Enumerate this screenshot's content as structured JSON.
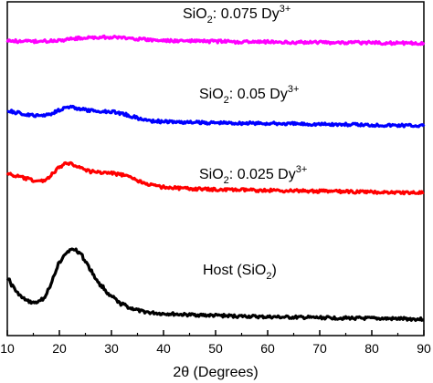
{
  "chart_data": {
    "type": "line",
    "title": "",
    "xlabel": "2θ (Degrees)",
    "ylabel": "",
    "xlim": [
      10,
      90
    ],
    "x_ticks": [
      10,
      20,
      30,
      40,
      50,
      60,
      70,
      80,
      90
    ],
    "grid": false,
    "legend": "none",
    "y_unit": "relative intensity (arbitrary, offset traces)",
    "series": [
      {
        "label_parts": {
          "pre": "Host (SiO",
          "sub": "2",
          "mid": ")",
          "sup": ""
        },
        "color": "#000000",
        "x": [
          10,
          11,
          12,
          13,
          14,
          15,
          16,
          17,
          18,
          19,
          20,
          21,
          22,
          23,
          24,
          25,
          26,
          27,
          28,
          30,
          32,
          34,
          36,
          38,
          40,
          45,
          50,
          55,
          60,
          65,
          70,
          75,
          80,
          85,
          90
        ],
        "y": [
          0.6,
          0.48,
          0.38,
          0.31,
          0.27,
          0.25,
          0.26,
          0.31,
          0.44,
          0.62,
          0.8,
          0.92,
          0.97,
          0.98,
          0.93,
          0.82,
          0.7,
          0.58,
          0.48,
          0.33,
          0.23,
          0.17,
          0.13,
          0.11,
          0.1,
          0.085,
          0.075,
          0.065,
          0.055,
          0.05,
          0.045,
          0.04,
          0.035,
          0.03,
          0.025
        ]
      },
      {
        "label_parts": {
          "pre": "SiO",
          "sub": "2",
          "mid": ": 0.025 Dy",
          "sup": "3+"
        },
        "color": "#ff0000",
        "x": [
          10,
          12,
          14,
          15,
          16,
          17,
          18,
          19,
          20,
          21,
          22,
          23,
          24,
          25,
          26,
          28,
          30,
          32,
          34,
          36,
          38,
          40,
          45,
          50,
          55,
          60,
          65,
          70,
          75,
          80,
          85,
          90
        ],
        "y": [
          0.78,
          0.75,
          0.72,
          0.7,
          0.69,
          0.7,
          0.74,
          0.8,
          0.86,
          0.9,
          0.91,
          0.89,
          0.86,
          0.83,
          0.81,
          0.8,
          0.79,
          0.77,
          0.73,
          0.68,
          0.64,
          0.62,
          0.6,
          0.59,
          0.585,
          0.58,
          0.575,
          0.57,
          0.565,
          0.56,
          0.555,
          0.55
        ]
      },
      {
        "label_parts": {
          "pre": "SiO",
          "sub": "2",
          "mid": ": 0.05 Dy",
          "sup": "3+"
        },
        "color": "#0000ff",
        "x": [
          10,
          12,
          14,
          16,
          18,
          20,
          21,
          22,
          23,
          24,
          26,
          28,
          30,
          32,
          34,
          36,
          38,
          40,
          45,
          50,
          55,
          60,
          65,
          70,
          75,
          80,
          85,
          90
        ],
        "y": [
          0.52,
          0.49,
          0.46,
          0.45,
          0.47,
          0.53,
          0.56,
          0.57,
          0.56,
          0.54,
          0.52,
          0.51,
          0.51,
          0.48,
          0.44,
          0.4,
          0.38,
          0.37,
          0.36,
          0.355,
          0.35,
          0.345,
          0.34,
          0.335,
          0.33,
          0.325,
          0.32,
          0.315
        ]
      },
      {
        "label_parts": {
          "pre": "SiO",
          "sub": "2",
          "mid": ": 0.075 Dy",
          "sup": "3+"
        },
        "color": "#ff00ff",
        "x": [
          10,
          14,
          18,
          20,
          22,
          24,
          26,
          28,
          30,
          32,
          34,
          36,
          38,
          40,
          45,
          50,
          55,
          60,
          65,
          70,
          75,
          80,
          85,
          90
        ],
        "y": [
          0.3,
          0.295,
          0.3,
          0.31,
          0.325,
          0.335,
          0.34,
          0.345,
          0.345,
          0.34,
          0.33,
          0.32,
          0.31,
          0.305,
          0.3,
          0.295,
          0.29,
          0.29,
          0.285,
          0.285,
          0.28,
          0.28,
          0.275,
          0.275
        ]
      }
    ]
  }
}
